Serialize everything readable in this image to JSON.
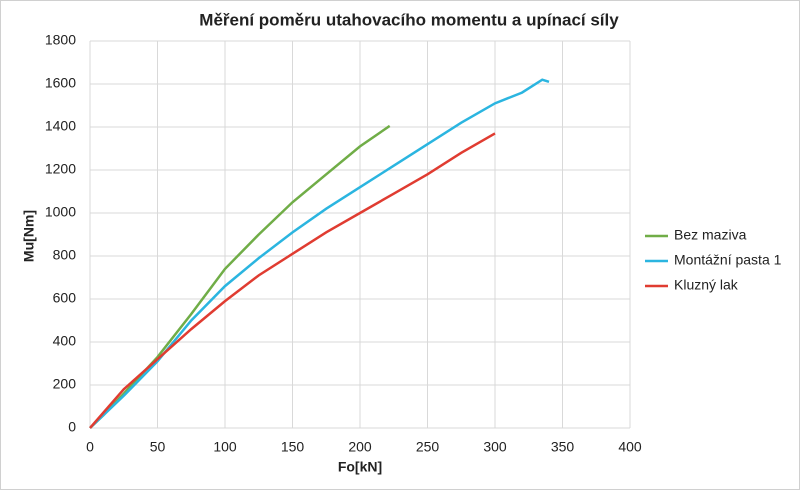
{
  "chart_data": {
    "type": "line",
    "title": "Měření poměru utahovacího momentu a upínací síly",
    "x_label": "Fo[kN]",
    "y_label": "Mu[Nm]",
    "xlim": [
      0,
      400
    ],
    "xticks": [
      0,
      50,
      100,
      150,
      200,
      250,
      300,
      350,
      400
    ],
    "ylim": [
      0,
      1800
    ],
    "yticks": [
      0,
      200,
      400,
      600,
      800,
      1000,
      1200,
      1400,
      1600,
      1800
    ],
    "grid": true,
    "legend": "right",
    "series": [
      {
        "name": "Bez maziva",
        "color": "#70ad47",
        "x": [
          0,
          10,
          25,
          50,
          75,
          100,
          125,
          150,
          175,
          200,
          222
        ],
        "values": [
          0,
          60,
          160,
          330,
          530,
          740,
          900,
          1050,
          1180,
          1310,
          1405
        ]
      },
      {
        "name": "Montážní pasta 1",
        "color": "#2bb5e0",
        "x": [
          0,
          25,
          50,
          75,
          100,
          125,
          150,
          175,
          200,
          225,
          250,
          275,
          300,
          320,
          335,
          340
        ],
        "values": [
          0,
          150,
          310,
          500,
          660,
          790,
          910,
          1020,
          1120,
          1220,
          1320,
          1420,
          1510,
          1560,
          1620,
          1610
        ]
      },
      {
        "name": "Kluzný lak",
        "color": "#e03c31",
        "x": [
          0,
          25,
          50,
          75,
          100,
          125,
          150,
          175,
          200,
          225,
          250,
          275,
          300
        ],
        "values": [
          0,
          180,
          320,
          460,
          590,
          710,
          810,
          910,
          1000,
          1090,
          1180,
          1280,
          1370
        ]
      }
    ]
  }
}
